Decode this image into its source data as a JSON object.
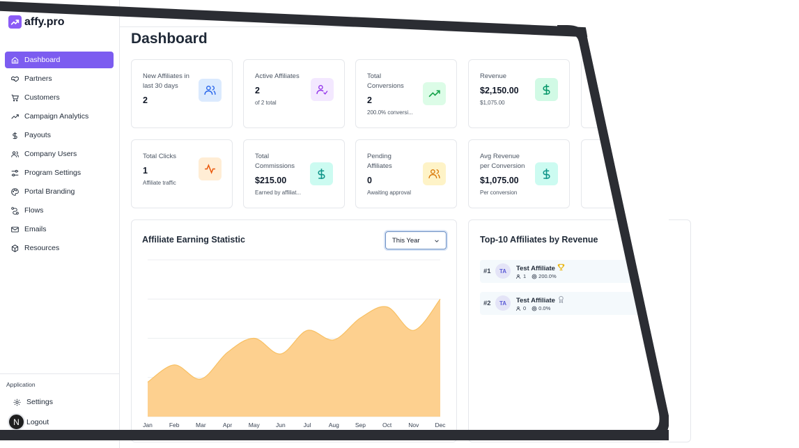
{
  "brand": {
    "name": "affy.pro",
    "accent": "#7c5cf0"
  },
  "sidebar": {
    "items": [
      {
        "label": "Dashboard",
        "icon": "home-icon",
        "active": true
      },
      {
        "label": "Partners",
        "icon": "handshake-icon"
      },
      {
        "label": "Customers",
        "icon": "cart-icon"
      },
      {
        "label": "Campaign Analytics",
        "icon": "trend-icon"
      },
      {
        "label": "Payouts",
        "icon": "dollar-icon"
      },
      {
        "label": "Company Users",
        "icon": "users-icon"
      },
      {
        "label": "Program Settings",
        "icon": "sliders-icon"
      },
      {
        "label": "Portal Branding",
        "icon": "palette-icon"
      },
      {
        "label": "Flows",
        "icon": "flow-icon"
      },
      {
        "label": "Emails",
        "icon": "mail-icon"
      },
      {
        "label": "Resources",
        "icon": "box-icon"
      }
    ],
    "section_label": "Application",
    "settings_label": "Settings",
    "logout_label": "Logout",
    "avatar_letter": "N"
  },
  "page": {
    "title": "Dashboard"
  },
  "stats": [
    {
      "label": "New Affiliates in last 30 days",
      "value": "2",
      "sub": ""
    },
    {
      "label": "Active Affiliates",
      "value": "2",
      "sub": "of 2 total"
    },
    {
      "label": "Total Conversions",
      "value": "2",
      "sub": "200.0% conversi..."
    },
    {
      "label": "Revenue",
      "value": "$2,150.00",
      "sub": "$1,075.00"
    },
    {
      "label": "Total Clicks",
      "value": "1",
      "sub": "Affiliate traffic"
    },
    {
      "label": "Total Commissions",
      "value": "$215.00",
      "sub": "Earned by affiliat..."
    },
    {
      "label": "Pending Affiliates",
      "value": "0",
      "sub": "Awaiting approval"
    },
    {
      "label": "Avg Revenue per Conversion",
      "value": "$1,075.00",
      "sub": "Per conversion"
    }
  ],
  "earning_panel": {
    "title": "Affiliate Earning Statistic",
    "range": "This Year"
  },
  "chart_data": {
    "type": "area",
    "title": "Affiliate Earning Statistic",
    "categories": [
      "Jan",
      "Feb",
      "Mar",
      "Apr",
      "May",
      "Jun",
      "Jul",
      "Aug",
      "Sep",
      "Oct",
      "Nov",
      "Dec"
    ],
    "values": [
      22,
      33,
      24,
      41,
      50,
      40,
      55,
      49,
      63,
      70,
      55,
      75
    ],
    "ylim": [
      0,
      100
    ],
    "grid": true,
    "color": "#fdd08f"
  },
  "top_panel": {
    "title": "Top-10 Affiliates by Revenue",
    "rows": [
      {
        "rank": "#1",
        "initials": "TA",
        "name": "Test Affiliate",
        "referrals": "1",
        "rate": "200.0%"
      },
      {
        "rank": "#2",
        "initials": "TA",
        "name": "Test Affiliate",
        "referrals": "0",
        "rate": "0.0%"
      }
    ]
  }
}
